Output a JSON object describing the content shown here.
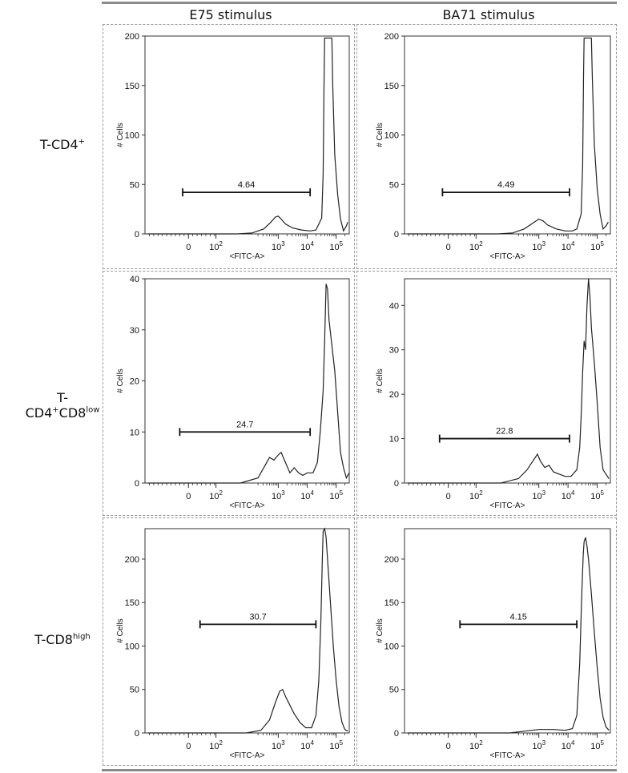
{
  "columns": [
    "E75 stimulus",
    "BA71 stimulus"
  ],
  "rows": [
    {
      "label_main": "T-CD4",
      "label_sup": "+",
      "label_mid": "",
      "label_sup2": ""
    },
    {
      "label_main": "T-CD4",
      "label_sup": "+",
      "label_mid": "CD8",
      "label_sup2": "low"
    },
    {
      "label_main": "T-CD8",
      "label_sup": "high",
      "label_mid": "",
      "label_sup2": ""
    }
  ],
  "chart_data": [
    {
      "type": "histogram",
      "row": 0,
      "col": 0,
      "xlabel": "<FITC-A>",
      "ylabel": "# Cells",
      "xticks": [
        "0",
        "10^2",
        "10^3",
        "10^4",
        "10^5"
      ],
      "ylim": [
        0,
        200
      ],
      "yticks": [
        0,
        50,
        100,
        150,
        200
      ],
      "gate_label": "4.64",
      "gate_y": 42,
      "gate_x": [
        -0.3,
        4.1
      ],
      "curve": [
        [
          -1.5,
          0
        ],
        [
          1.6,
          0
        ],
        [
          2.1,
          1
        ],
        [
          2.5,
          5
        ],
        [
          2.75,
          12
        ],
        [
          2.9,
          17
        ],
        [
          3.0,
          18
        ],
        [
          3.1,
          15
        ],
        [
          3.25,
          10
        ],
        [
          3.5,
          6
        ],
        [
          3.8,
          4
        ],
        [
          4.1,
          3
        ],
        [
          4.3,
          4
        ],
        [
          4.5,
          16
        ],
        [
          4.55,
          60
        ],
        [
          4.58,
          150
        ],
        [
          4.6,
          198
        ],
        [
          4.85,
          198
        ],
        [
          4.88,
          150
        ],
        [
          4.95,
          80
        ],
        [
          5.05,
          40
        ],
        [
          5.15,
          15
        ],
        [
          5.25,
          3
        ],
        [
          5.35,
          8
        ],
        [
          5.4,
          12
        ]
      ]
    },
    {
      "type": "histogram",
      "row": 0,
      "col": 1,
      "xlabel": "<FITC-A>",
      "ylabel": "# Cells",
      "xticks": [
        "0",
        "10^2",
        "10^3",
        "10^4",
        "10^5"
      ],
      "ylim": [
        0,
        200
      ],
      "yticks": [
        0,
        50,
        100,
        150,
        200
      ],
      "gate_label": "4.49",
      "gate_y": 42,
      "gate_x": [
        -0.3,
        4.05
      ],
      "curve": [
        [
          -1.5,
          0
        ],
        [
          1.6,
          0
        ],
        [
          2.1,
          1
        ],
        [
          2.5,
          5
        ],
        [
          2.8,
          11
        ],
        [
          3.0,
          15
        ],
        [
          3.15,
          13
        ],
        [
          3.3,
          9
        ],
        [
          3.6,
          5
        ],
        [
          3.9,
          3
        ],
        [
          4.15,
          3
        ],
        [
          4.3,
          5
        ],
        [
          4.45,
          20
        ],
        [
          4.5,
          70
        ],
        [
          4.53,
          160
        ],
        [
          4.55,
          198
        ],
        [
          4.8,
          198
        ],
        [
          4.83,
          160
        ],
        [
          4.9,
          90
        ],
        [
          5.0,
          45
        ],
        [
          5.1,
          20
        ],
        [
          5.2,
          5
        ],
        [
          5.3,
          8
        ],
        [
          5.38,
          12
        ]
      ]
    },
    {
      "type": "histogram",
      "row": 1,
      "col": 0,
      "xlabel": "<FITC-A>",
      "ylabel": "# Cells",
      "xticks": [
        "0",
        "10^2",
        "10^3",
        "10^4",
        "10^5"
      ],
      "ylim": [
        0,
        40
      ],
      "yticks": [
        0,
        10,
        20,
        30,
        40
      ],
      "gate_label": "24.7",
      "gate_y": 10,
      "gate_x": [
        -0.4,
        4.1
      ],
      "curve": [
        [
          -1.5,
          0
        ],
        [
          1.7,
          0
        ],
        [
          2.3,
          1
        ],
        [
          2.55,
          3.5
        ],
        [
          2.7,
          5
        ],
        [
          2.85,
          4.5
        ],
        [
          3.0,
          5.5
        ],
        [
          3.1,
          6
        ],
        [
          3.25,
          4
        ],
        [
          3.4,
          2
        ],
        [
          3.55,
          3
        ],
        [
          3.7,
          2
        ],
        [
          3.85,
          1.5
        ],
        [
          4.0,
          2
        ],
        [
          4.2,
          2
        ],
        [
          4.35,
          4
        ],
        [
          4.45,
          10
        ],
        [
          4.55,
          18
        ],
        [
          4.6,
          28
        ],
        [
          4.65,
          39
        ],
        [
          4.7,
          38
        ],
        [
          4.75,
          32
        ],
        [
          4.85,
          27
        ],
        [
          4.95,
          22
        ],
        [
          5.05,
          14
        ],
        [
          5.15,
          6
        ],
        [
          5.25,
          3
        ],
        [
          5.35,
          1
        ],
        [
          5.45,
          2
        ]
      ]
    },
    {
      "type": "histogram",
      "row": 1,
      "col": 1,
      "xlabel": "<FITC-A>",
      "ylabel": "# Cells",
      "xticks": [
        "0",
        "10^2",
        "10^3",
        "10^4",
        "10^5"
      ],
      "ylim": [
        0,
        46
      ],
      "yticks": [
        0,
        10,
        20,
        30,
        40
      ],
      "gate_label": "22.8",
      "gate_y": 10,
      "gate_x": [
        -0.4,
        4.05
      ],
      "curve": [
        [
          -1.5,
          0
        ],
        [
          1.7,
          0
        ],
        [
          2.3,
          1
        ],
        [
          2.6,
          3
        ],
        [
          2.8,
          5
        ],
        [
          2.95,
          6.5
        ],
        [
          3.05,
          5
        ],
        [
          3.2,
          3.5
        ],
        [
          3.35,
          4
        ],
        [
          3.5,
          2.5
        ],
        [
          3.7,
          2
        ],
        [
          3.9,
          1.5
        ],
        [
          4.1,
          1.5
        ],
        [
          4.3,
          3
        ],
        [
          4.4,
          8
        ],
        [
          4.45,
          15
        ],
        [
          4.5,
          25
        ],
        [
          4.55,
          32
        ],
        [
          4.6,
          30
        ],
        [
          4.65,
          40
        ],
        [
          4.7,
          46
        ],
        [
          4.75,
          42
        ],
        [
          4.8,
          35
        ],
        [
          4.9,
          27
        ],
        [
          5.0,
          18
        ],
        [
          5.1,
          8
        ],
        [
          5.2,
          3
        ],
        [
          5.3,
          2
        ],
        [
          5.4,
          1
        ]
      ]
    },
    {
      "type": "histogram",
      "row": 2,
      "col": 0,
      "xlabel": "<FITC-A>",
      "ylabel": "# Cells",
      "xticks": [
        "0",
        "10^2",
        "10^3",
        "10^4",
        "10^5"
      ],
      "ylim": [
        0,
        235
      ],
      "yticks": [
        0,
        50,
        100,
        150,
        200
      ],
      "gate_label": "30.7",
      "gate_y": 125,
      "gate_x": [
        0.3,
        4.3
      ],
      "curve": [
        [
          -1.5,
          0
        ],
        [
          1.9,
          0
        ],
        [
          2.4,
          3
        ],
        [
          2.7,
          15
        ],
        [
          2.9,
          35
        ],
        [
          3.05,
          48
        ],
        [
          3.15,
          50
        ],
        [
          3.25,
          42
        ],
        [
          3.4,
          32
        ],
        [
          3.55,
          22
        ],
        [
          3.75,
          12
        ],
        [
          3.95,
          6
        ],
        [
          4.15,
          6
        ],
        [
          4.3,
          20
        ],
        [
          4.4,
          60
        ],
        [
          4.47,
          130
        ],
        [
          4.52,
          200
        ],
        [
          4.55,
          232
        ],
        [
          4.6,
          235
        ],
        [
          4.65,
          225
        ],
        [
          4.7,
          200
        ],
        [
          4.8,
          150
        ],
        [
          4.9,
          100
        ],
        [
          5.0,
          60
        ],
        [
          5.1,
          30
        ],
        [
          5.2,
          12
        ],
        [
          5.3,
          4
        ],
        [
          5.4,
          2
        ]
      ]
    },
    {
      "type": "histogram",
      "row": 2,
      "col": 1,
      "xlabel": "<FITC-A>",
      "ylabel": "# Cells",
      "xticks": [
        "0",
        "10^2",
        "10^3",
        "10^4",
        "10^5"
      ],
      "ylim": [
        0,
        235
      ],
      "yticks": [
        0,
        50,
        100,
        150,
        200
      ],
      "gate_label": "4.15",
      "gate_y": 125,
      "gate_x": [
        0.3,
        4.3
      ],
      "curve": [
        [
          -1.5,
          0
        ],
        [
          2.0,
          0
        ],
        [
          2.5,
          2
        ],
        [
          3.0,
          4
        ],
        [
          3.5,
          4
        ],
        [
          3.9,
          3
        ],
        [
          4.15,
          5
        ],
        [
          4.3,
          20
        ],
        [
          4.4,
          80
        ],
        [
          4.47,
          160
        ],
        [
          4.52,
          205
        ],
        [
          4.55,
          220
        ],
        [
          4.6,
          225
        ],
        [
          4.65,
          215
        ],
        [
          4.7,
          200
        ],
        [
          4.8,
          160
        ],
        [
          4.9,
          115
        ],
        [
          5.0,
          75
        ],
        [
          5.1,
          40
        ],
        [
          5.2,
          18
        ],
        [
          5.3,
          7
        ],
        [
          5.4,
          3
        ]
      ]
    }
  ]
}
